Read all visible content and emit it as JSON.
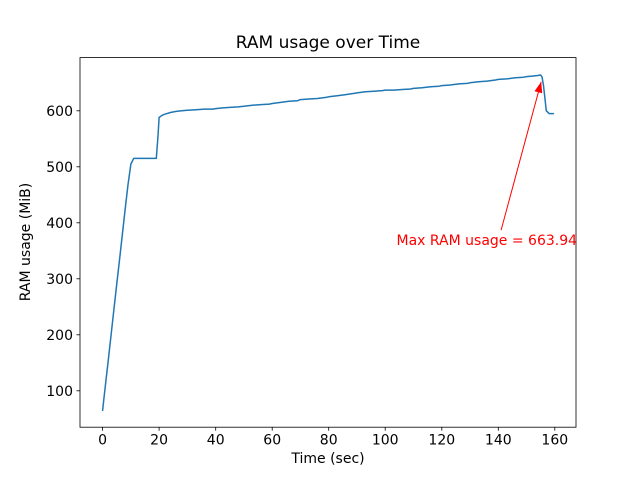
{
  "window": {
    "background": "#ffffff"
  },
  "chart_data": {
    "type": "line",
    "title": "RAM usage over Time",
    "xlabel": "Time (sec)",
    "ylabel": "RAM usage (MiB)",
    "xlim": [
      -8,
      167.5
    ],
    "ylim": [
      35,
      695
    ],
    "xticks": [
      0,
      20,
      40,
      60,
      80,
      100,
      120,
      140,
      160
    ],
    "yticks": [
      100,
      200,
      300,
      400,
      500,
      600
    ],
    "grid": false,
    "legend": "none",
    "line_color": "#1f77b4",
    "axes_color": "#000000",
    "series": [
      {
        "name": "RAM usage",
        "points": [
          [
            0,
            65
          ],
          [
            1,
            110
          ],
          [
            2,
            155
          ],
          [
            3,
            200
          ],
          [
            4,
            245
          ],
          [
            5,
            290
          ],
          [
            6,
            335
          ],
          [
            7,
            380
          ],
          [
            8,
            425
          ],
          [
            9,
            468
          ],
          [
            10,
            505
          ],
          [
            11,
            515
          ],
          [
            19,
            515
          ],
          [
            19.6,
            555
          ],
          [
            20,
            588
          ],
          [
            21,
            592
          ],
          [
            22,
            594
          ],
          [
            24,
            597
          ],
          [
            26,
            599
          ],
          [
            28,
            600
          ],
          [
            30,
            601
          ],
          [
            33,
            602
          ],
          [
            36,
            603
          ],
          [
            39,
            603
          ],
          [
            40,
            604
          ],
          [
            42,
            605
          ],
          [
            45,
            606
          ],
          [
            48,
            607
          ],
          [
            50,
            608
          ],
          [
            53,
            610
          ],
          [
            56,
            611
          ],
          [
            59,
            612
          ],
          [
            60,
            613
          ],
          [
            63,
            615
          ],
          [
            66,
            617
          ],
          [
            69,
            618
          ],
          [
            70,
            620
          ],
          [
            73,
            621
          ],
          [
            76,
            622
          ],
          [
            79,
            624
          ],
          [
            80,
            625
          ],
          [
            83,
            627
          ],
          [
            86,
            629
          ],
          [
            89,
            631
          ],
          [
            90,
            632
          ],
          [
            93,
            634
          ],
          [
            96,
            635
          ],
          [
            99,
            636
          ],
          [
            100,
            637
          ],
          [
            103,
            637
          ],
          [
            106,
            638
          ],
          [
            109,
            639
          ],
          [
            110,
            640
          ],
          [
            113,
            641
          ],
          [
            116,
            643
          ],
          [
            119,
            644
          ],
          [
            120,
            645
          ],
          [
            123,
            646
          ],
          [
            126,
            648
          ],
          [
            129,
            649
          ],
          [
            130,
            650
          ],
          [
            133,
            652
          ],
          [
            136,
            653
          ],
          [
            139,
            655
          ],
          [
            140,
            656
          ],
          [
            143,
            657
          ],
          [
            146,
            659
          ],
          [
            149,
            660
          ],
          [
            150,
            661
          ],
          [
            152,
            662
          ],
          [
            154,
            663
          ],
          [
            155,
            663.94
          ],
          [
            155.5,
            660
          ],
          [
            156,
            645
          ],
          [
            157,
            600
          ],
          [
            158,
            595
          ],
          [
            159.5,
            595
          ]
        ]
      }
    ],
    "annotation": {
      "text": "Max RAM usage = 663.94",
      "color": "#ff0000",
      "text_xy": [
        104,
        360
      ],
      "arrow_from": [
        141,
        387
      ],
      "arrow_to": [
        155.2,
        652
      ]
    }
  }
}
